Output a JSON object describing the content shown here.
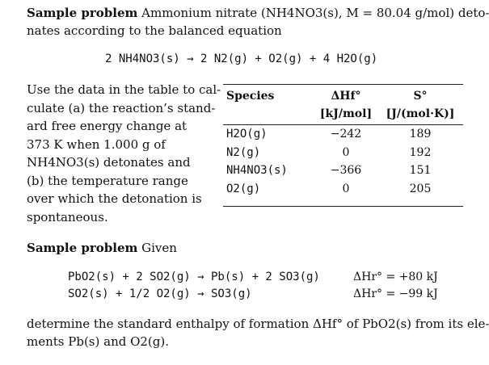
{
  "problem1": {
    "heading": "Sample problem",
    "intro_line1": "Ammonium nitrate (NH4NO3(s), M = 80.04 g/mol) deto-",
    "intro_line2": "nates  according to the balanced equation",
    "equation": "2 NH4NO3(s)  →  2 N2(g)  +  O2(g)  +  4 H2O(g)",
    "text_lines": [
      "Use the data in the table to cal-",
      "culate (a) the reaction’s stand-",
      "ard free energy change at",
      "373 K when 1.000 g of",
      "NH4NO3(s) detonates and",
      "(b) the temperature range",
      "over which the detonation is",
      "spontaneous."
    ],
    "table": {
      "col_species": "Species",
      "col_dhf": "ΔHf°",
      "col_dhf_unit": "[kJ/mol]",
      "col_s": "S°",
      "col_s_unit": "[J/(mol·K)]",
      "rows": [
        {
          "species": "H2O(g)",
          "dhf": "−242",
          "s": "189"
        },
        {
          "species": "N2(g)",
          "dhf": "0",
          "s": "192"
        },
        {
          "species": "NH4NO3(s)",
          "dhf": "−366",
          "s": "151"
        },
        {
          "species": "O2(g)",
          "dhf": "0",
          "s": "205"
        }
      ]
    }
  },
  "problem2": {
    "heading": "Sample problem",
    "given": "Given",
    "reactions": [
      {
        "equation": "PbO2(s)  +  2 SO2(g)  →  Pb(s)  +  2 SO3(g)",
        "dh": "ΔHr° = +80 kJ"
      },
      {
        "equation": "SO2(s)  +  1/2 O2(g)  →  SO3(g)",
        "dh": "ΔHr° = −99 kJ"
      }
    ],
    "question_line1": "determine the standard enthalpy of formation ΔHf° of PbO2(s) from its ele-",
    "question_line2": "ments Pb(s) and O2(g)."
  }
}
